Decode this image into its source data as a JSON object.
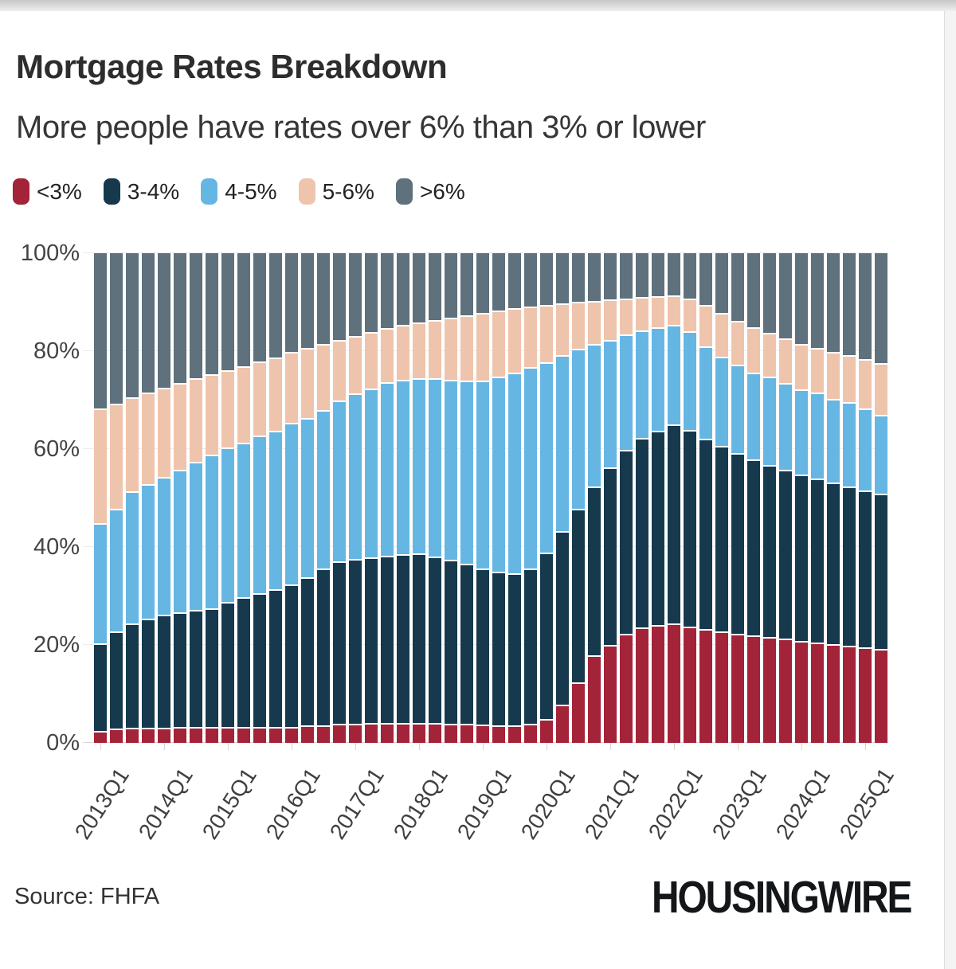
{
  "page": {
    "title": "Mortgage Rates Breakdown",
    "subtitle": "More people have rates over 6% than 3% or lower",
    "source_label": "Source: FHFA",
    "brand_logo": "HOUSINGWIRE"
  },
  "colors": {
    "rate_lt3": "#a32338",
    "rate_3_4": "#16394d",
    "rate_4_5": "#66b6e3",
    "rate_5_6": "#efc4ac",
    "rate_gt6": "#5e717c",
    "grid": "#ececec",
    "axis_text": "#444444",
    "card_bg": "#ffffff",
    "page_bg": "#f4f4f4"
  },
  "chart_data": {
    "type": "bar",
    "stacked": true,
    "title": "Mortgage Rates Breakdown",
    "subtitle": "More people have rates over 6% than 3% or lower",
    "xlabel": "",
    "ylabel": "",
    "ylim": [
      0,
      100
    ],
    "grid": true,
    "legend_position": "top",
    "y_ticks": [
      "0%",
      "20%",
      "40%",
      "60%",
      "80%",
      "100%"
    ],
    "x_tick_labels": [
      "2013Q1",
      "2014Q1",
      "2015Q1",
      "2016Q1",
      "2017Q1",
      "2018Q1",
      "2019Q1",
      "2020Q1",
      "2021Q1",
      "2022Q1",
      "2023Q1",
      "2024Q1",
      "2025Q1"
    ],
    "categories": [
      "2013Q1",
      "2013Q2",
      "2013Q3",
      "2013Q4",
      "2014Q1",
      "2014Q2",
      "2014Q3",
      "2014Q4",
      "2015Q1",
      "2015Q2",
      "2015Q3",
      "2015Q4",
      "2016Q1",
      "2016Q2",
      "2016Q3",
      "2016Q4",
      "2017Q1",
      "2017Q2",
      "2017Q3",
      "2017Q4",
      "2018Q1",
      "2018Q2",
      "2018Q3",
      "2018Q4",
      "2019Q1",
      "2019Q2",
      "2019Q3",
      "2019Q4",
      "2020Q1",
      "2020Q2",
      "2020Q3",
      "2020Q4",
      "2021Q1",
      "2021Q2",
      "2021Q3",
      "2021Q4",
      "2022Q1",
      "2022Q2",
      "2022Q3",
      "2022Q4",
      "2023Q1",
      "2023Q2",
      "2023Q3",
      "2023Q4",
      "2024Q1",
      "2024Q2",
      "2024Q3",
      "2024Q4",
      "2025Q1",
      "2025Q2"
    ],
    "series": [
      {
        "name": "<3%",
        "color": "#a32338",
        "values": [
          2.1,
          2.6,
          2.7,
          2.8,
          2.8,
          2.9,
          3.0,
          3.0,
          3.0,
          3.0,
          3.0,
          3.0,
          3.0,
          3.2,
          3.3,
          3.5,
          3.6,
          3.7,
          3.7,
          3.8,
          3.7,
          3.7,
          3.6,
          3.5,
          3.4,
          3.3,
          3.3,
          3.5,
          4.5,
          7.5,
          12.0,
          17.5,
          19.7,
          21.9,
          23.3,
          23.8,
          24.0,
          23.4,
          22.9,
          22.4,
          21.9,
          21.6,
          21.3,
          20.9,
          20.5,
          20.1,
          19.8,
          19.5,
          19.2,
          18.8
        ]
      },
      {
        "name": "3-4%",
        "color": "#16394d",
        "values": [
          17.9,
          19.9,
          21.3,
          22.2,
          23.0,
          23.4,
          23.8,
          24.2,
          25.5,
          26.5,
          27.3,
          28.0,
          29.0,
          30.3,
          32.0,
          33.3,
          33.7,
          33.9,
          34.2,
          34.4,
          34.7,
          34.1,
          33.4,
          32.7,
          31.9,
          31.3,
          31.0,
          31.8,
          34.0,
          35.5,
          35.5,
          34.5,
          36.3,
          37.6,
          38.7,
          39.7,
          40.8,
          40.1,
          38.9,
          37.9,
          36.9,
          35.9,
          35.2,
          34.6,
          34.0,
          33.5,
          33.0,
          32.5,
          32.0,
          31.7
        ]
      },
      {
        "name": "4-5%",
        "color": "#66b6e3",
        "values": [
          24.5,
          25.0,
          27.0,
          27.5,
          28.2,
          29.2,
          30.2,
          31.3,
          31.5,
          31.5,
          32.2,
          32.5,
          33.0,
          32.5,
          32.4,
          32.8,
          33.7,
          34.4,
          35.5,
          35.7,
          35.8,
          36.4,
          36.9,
          37.5,
          38.4,
          39.9,
          41.0,
          41.1,
          38.9,
          35.8,
          32.7,
          29.2,
          26.0,
          23.6,
          21.9,
          21.0,
          20.2,
          20.2,
          18.9,
          18.2,
          18.1,
          17.8,
          17.9,
          17.6,
          17.3,
          17.6,
          17.1,
          17.3,
          16.7,
          16.1
        ]
      },
      {
        "name": "5-6%",
        "color": "#efc4ac",
        "values": [
          23.5,
          21.5,
          19.2,
          18.7,
          18.2,
          17.7,
          17.2,
          16.5,
          15.8,
          15.6,
          15.0,
          14.9,
          14.5,
          14.3,
          13.5,
          12.4,
          11.8,
          11.6,
          11.0,
          11.1,
          11.3,
          11.8,
          12.6,
          13.3,
          13.8,
          13.5,
          13.1,
          12.4,
          11.7,
          10.6,
          9.5,
          8.7,
          8.2,
          7.3,
          6.8,
          6.4,
          6.0,
          6.7,
          8.4,
          9.0,
          9.0,
          9.2,
          9.0,
          9.2,
          9.4,
          9.2,
          9.7,
          9.5,
          10.1,
          10.6
        ]
      },
      {
        "name": ">6%",
        "color": "#5e717c",
        "values": [
          32.0,
          31.0,
          29.8,
          28.8,
          27.8,
          26.8,
          25.8,
          25.0,
          24.2,
          23.4,
          22.5,
          21.6,
          20.5,
          19.7,
          18.8,
          18.0,
          17.2,
          16.4,
          15.6,
          15.0,
          14.5,
          14.0,
          13.5,
          13.0,
          12.5,
          12.0,
          11.6,
          11.2,
          10.9,
          10.6,
          10.3,
          10.1,
          9.8,
          9.6,
          9.3,
          9.1,
          9.0,
          9.6,
          10.9,
          12.5,
          14.1,
          15.5,
          16.6,
          17.7,
          18.8,
          19.6,
          20.4,
          21.2,
          22.0,
          22.8
        ]
      }
    ]
  }
}
